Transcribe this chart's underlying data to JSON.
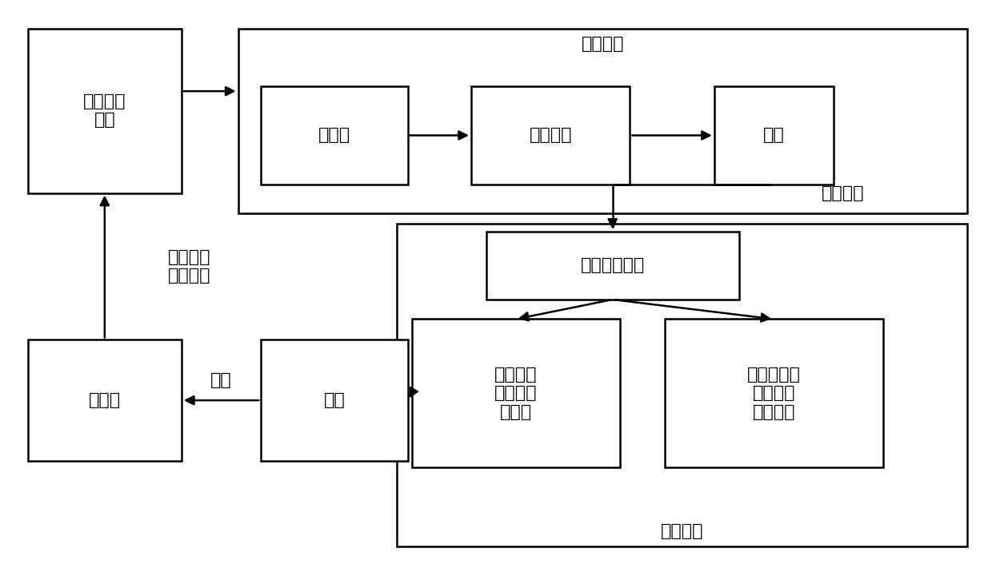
{
  "bg_color": "#ffffff",
  "box_edge_color": "#000000",
  "box_face_color": "#ffffff",
  "text_color": "#000000",
  "arrow_color": "#000000",
  "line_width": 1.8,
  "arrow_mutation_scale": 18,
  "font_size": 16,
  "boxes": {
    "brain_signal": [
      0.028,
      0.665,
      0.155,
      0.285
    ],
    "signal_proc_outer": [
      0.24,
      0.63,
      0.735,
      0.32
    ],
    "preprocess": [
      0.263,
      0.68,
      0.148,
      0.17
    ],
    "feature": [
      0.475,
      0.68,
      0.16,
      0.17
    ],
    "classify": [
      0.72,
      0.68,
      0.12,
      0.17
    ],
    "shared_ctrl_outer": [
      0.4,
      0.052,
      0.575,
      0.56
    ],
    "eeg_detect": [
      0.49,
      0.48,
      0.255,
      0.118
    ],
    "fuzzy_fault": [
      0.415,
      0.188,
      0.21,
      0.258
    ],
    "fuzzy_drive": [
      0.67,
      0.188,
      0.22,
      0.258
    ],
    "vehicle": [
      0.263,
      0.2,
      0.148,
      0.21
    ],
    "subject": [
      0.028,
      0.2,
      0.155,
      0.21
    ]
  },
  "labels": {
    "brain_signal": "脑电信号\n采集",
    "signal_proc_outer": "信号处理",
    "preprocess": "预处理",
    "feature": "特征提取",
    "classify": "分类",
    "shared_ctrl_outer": "共享控制",
    "eeg_detect": "脑电指令检测",
    "fuzzy_fault": "基于模糊\n控制的容\n错机制",
    "fuzzy_drive": "基于模糊控\n制的智能\n驾驶模块",
    "vehicle": "车辆",
    "subject": "被试者"
  },
  "label_anchor": {
    "brain_signal": "center",
    "signal_proc_outer": "top",
    "preprocess": "center",
    "feature": "center",
    "classify": "center",
    "shared_ctrl_outer": "bottom",
    "eeg_detect": "center",
    "fuzzy_fault": "center",
    "fuzzy_drive": "center",
    "vehicle": "center",
    "subject": "center"
  },
  "annotation_eeg_cmd": "脑电指令",
  "annotation_motor": "运动想象\n脑电信号",
  "annotation_feedback": "反馈"
}
